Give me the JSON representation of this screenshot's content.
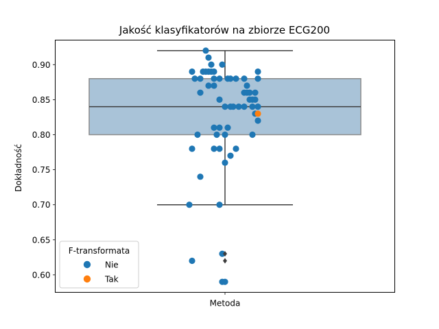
{
  "chart_data": {
    "type": "scatter",
    "title": "Jakość klasyfikatorów na zbiorze ECG200",
    "xlabel": "",
    "ylabel": "Dokładność",
    "categories": [
      "Metoda"
    ],
    "ylim": [
      0.575,
      0.935
    ],
    "yticks": [
      0.6,
      0.65,
      0.7,
      0.75,
      0.8,
      0.85,
      0.9
    ],
    "grid": false,
    "box": {
      "whisker_low": 0.7,
      "q1": 0.8,
      "median": 0.84,
      "q3": 0.88,
      "whisker_high": 0.92,
      "outliers": [
        0.63,
        0.62
      ],
      "fill_color": "#a9c3d8",
      "edge_color": "#8a8a8a",
      "line_color": "#3d3d3d"
    },
    "legend": {
      "title": "F-transformata",
      "position": "lower-left",
      "entries": [
        {
          "label": "Nie",
          "color": "#1f77b4"
        },
        {
          "label": "Tak",
          "color": "#ff7f0e"
        }
      ]
    },
    "series": [
      {
        "name": "Nie",
        "color": "#1f77b4",
        "points": [
          {
            "x": -0.07,
            "y": 0.92
          },
          {
            "x": -0.06,
            "y": 0.91
          },
          {
            "x": -0.05,
            "y": 0.9
          },
          {
            "x": -0.01,
            "y": 0.9
          },
          {
            "x": -0.12,
            "y": 0.89
          },
          {
            "x": -0.08,
            "y": 0.89
          },
          {
            "x": -0.07,
            "y": 0.89
          },
          {
            "x": -0.06,
            "y": 0.89
          },
          {
            "x": -0.05,
            "y": 0.89
          },
          {
            "x": -0.04,
            "y": 0.89
          },
          {
            "x": 0.12,
            "y": 0.89
          },
          {
            "x": -0.11,
            "y": 0.88
          },
          {
            "x": -0.09,
            "y": 0.88
          },
          {
            "x": -0.04,
            "y": 0.88
          },
          {
            "x": -0.02,
            "y": 0.88
          },
          {
            "x": 0.01,
            "y": 0.88
          },
          {
            "x": 0.02,
            "y": 0.88
          },
          {
            "x": 0.04,
            "y": 0.88
          },
          {
            "x": 0.07,
            "y": 0.88
          },
          {
            "x": 0.12,
            "y": 0.88
          },
          {
            "x": -0.06,
            "y": 0.87
          },
          {
            "x": -0.04,
            "y": 0.87
          },
          {
            "x": 0.08,
            "y": 0.87
          },
          {
            "x": -0.09,
            "y": 0.86
          },
          {
            "x": 0.07,
            "y": 0.86
          },
          {
            "x": 0.08,
            "y": 0.86
          },
          {
            "x": 0.09,
            "y": 0.86
          },
          {
            "x": 0.11,
            "y": 0.86
          },
          {
            "x": -0.02,
            "y": 0.85
          },
          {
            "x": 0.09,
            "y": 0.85
          },
          {
            "x": 0.1,
            "y": 0.85
          },
          {
            "x": 0.11,
            "y": 0.85
          },
          {
            "x": 0.0,
            "y": 0.84
          },
          {
            "x": 0.02,
            "y": 0.84
          },
          {
            "x": 0.03,
            "y": 0.84
          },
          {
            "x": 0.05,
            "y": 0.84
          },
          {
            "x": 0.07,
            "y": 0.84
          },
          {
            "x": 0.1,
            "y": 0.84
          },
          {
            "x": 0.12,
            "y": 0.84
          },
          {
            "x": 0.11,
            "y": 0.83
          },
          {
            "x": 0.12,
            "y": 0.82
          },
          {
            "x": -0.04,
            "y": 0.81
          },
          {
            "x": -0.02,
            "y": 0.81
          },
          {
            "x": 0.01,
            "y": 0.81
          },
          {
            "x": -0.1,
            "y": 0.8
          },
          {
            "x": -0.03,
            "y": 0.8
          },
          {
            "x": 0.0,
            "y": 0.8
          },
          {
            "x": 0.1,
            "y": 0.8
          },
          {
            "x": -0.12,
            "y": 0.78
          },
          {
            "x": -0.04,
            "y": 0.78
          },
          {
            "x": -0.02,
            "y": 0.78
          },
          {
            "x": 0.04,
            "y": 0.78
          },
          {
            "x": 0.02,
            "y": 0.77
          },
          {
            "x": 0.0,
            "y": 0.76
          },
          {
            "x": -0.09,
            "y": 0.74
          },
          {
            "x": -0.13,
            "y": 0.7
          },
          {
            "x": -0.02,
            "y": 0.7
          },
          {
            "x": -0.01,
            "y": 0.63
          },
          {
            "x": -0.12,
            "y": 0.62
          },
          {
            "x": -0.01,
            "y": 0.59
          },
          {
            "x": 0.0,
            "y": 0.59
          }
        ]
      },
      {
        "name": "Tak",
        "color": "#ff7f0e",
        "points": [
          {
            "x": 0.12,
            "y": 0.83
          }
        ]
      }
    ]
  }
}
